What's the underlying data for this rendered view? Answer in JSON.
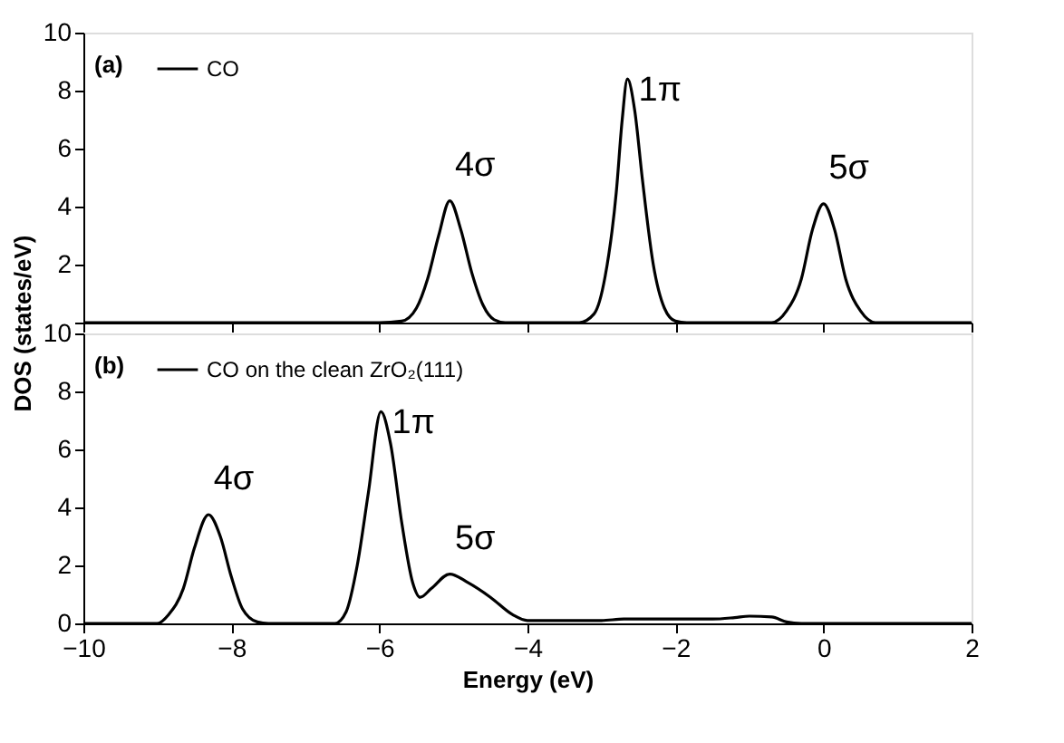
{
  "chart_data": [
    {
      "type": "line",
      "legend": "top left",
      "tick_labels": "y",
      "ylabel": "DOS (states/eV)",
      "xlim": [
        -10,
        2
      ],
      "xticks": [
        -10,
        -8,
        -6,
        -4,
        -2,
        0,
        2
      ],
      "ylim": [
        0,
        10
      ],
      "yticks": [
        {
          "value": 0,
          "label": null
        },
        2,
        4,
        6,
        8,
        10
      ],
      "grid": false,
      "marker": "none",
      "line_style": "solid",
      "annotations": [
        "(a)",
        {
          "text": "4σ",
          "x": -5.05,
          "y": 4.2
        },
        {
          "text": "1π",
          "x": -2.65,
          "y": 8.4
        },
        {
          "text": "5σ",
          "x": 0,
          "y": 4.1
        }
      ],
      "series": [
        {
          "name": "CO",
          "color": "#000000",
          "x": [
            -10,
            -6,
            -5.7,
            -5.5,
            -5.35,
            -5.2,
            -5.05,
            -4.9,
            -4.75,
            -4.6,
            -4.45,
            -4.3,
            -3.3,
            -3.1,
            -2.95,
            -2.8,
            -2.72,
            -2.65,
            -2.55,
            -2.45,
            -2.3,
            -2.15,
            -2.0,
            -1.85,
            -0.7,
            -0.5,
            -0.3,
            -0.15,
            0,
            0.15,
            0.3,
            0.5,
            0.7,
            2
          ],
          "values": [
            0,
            0,
            0.05,
            0.5,
            1.5,
            3.0,
            4.2,
            3.2,
            1.7,
            0.6,
            0.1,
            0,
            0,
            0.3,
            1.6,
            4.5,
            7.0,
            8.4,
            7.3,
            5.0,
            2.0,
            0.5,
            0.05,
            0,
            0,
            0.4,
            1.5,
            3.2,
            4.1,
            3.2,
            1.5,
            0.4,
            0,
            0
          ]
        }
      ]
    },
    {
      "type": "line",
      "legend": "top left",
      "xlabel": "Energy (eV)",
      "xlim": [
        -10,
        2
      ],
      "xticks": [
        -10,
        -8,
        -6,
        -4,
        -2,
        0,
        2
      ],
      "ylim": [
        0,
        10
      ],
      "yticks": [
        0,
        2,
        4,
        6,
        8,
        10
      ],
      "grid": false,
      "marker": "none",
      "line_style": "solid",
      "annotations": [
        "(b)",
        {
          "text": "4σ",
          "x": -8.31,
          "y": 3.75
        },
        {
          "text": "1π",
          "x": -5.98,
          "y": 7.3
        },
        {
          "text": "5σ",
          "x": -5.05,
          "y": 1.7
        }
      ],
      "series": [
        {
          "name": "CO  on  the clean ZrO₂(111)",
          "color": "#000000",
          "x": [
            -10,
            -9.0,
            -8.85,
            -8.65,
            -8.5,
            -8.31,
            -8.15,
            -8.0,
            -7.85,
            -7.65,
            -7.5,
            -6.6,
            -6.45,
            -6.3,
            -6.15,
            -5.98,
            -5.85,
            -5.7,
            -5.55,
            -5.45,
            -5.3,
            -5.05,
            -4.8,
            -4.5,
            -4.2,
            -4.0,
            -3.0,
            -2.7,
            -1.5,
            -1.2,
            -1.0,
            -0.7,
            -0.5,
            -0.3,
            0,
            2
          ],
          "values": [
            0,
            0,
            0.3,
            1.2,
            2.6,
            3.75,
            3.0,
            1.6,
            0.5,
            0.05,
            0,
            0,
            0.4,
            2.0,
            4.5,
            7.3,
            6.2,
            3.5,
            1.4,
            0.9,
            1.2,
            1.7,
            1.4,
            0.9,
            0.3,
            0.1,
            0.1,
            0.15,
            0.15,
            0.2,
            0.25,
            0.22,
            0.05,
            0,
            0,
            0
          ]
        }
      ]
    }
  ]
}
